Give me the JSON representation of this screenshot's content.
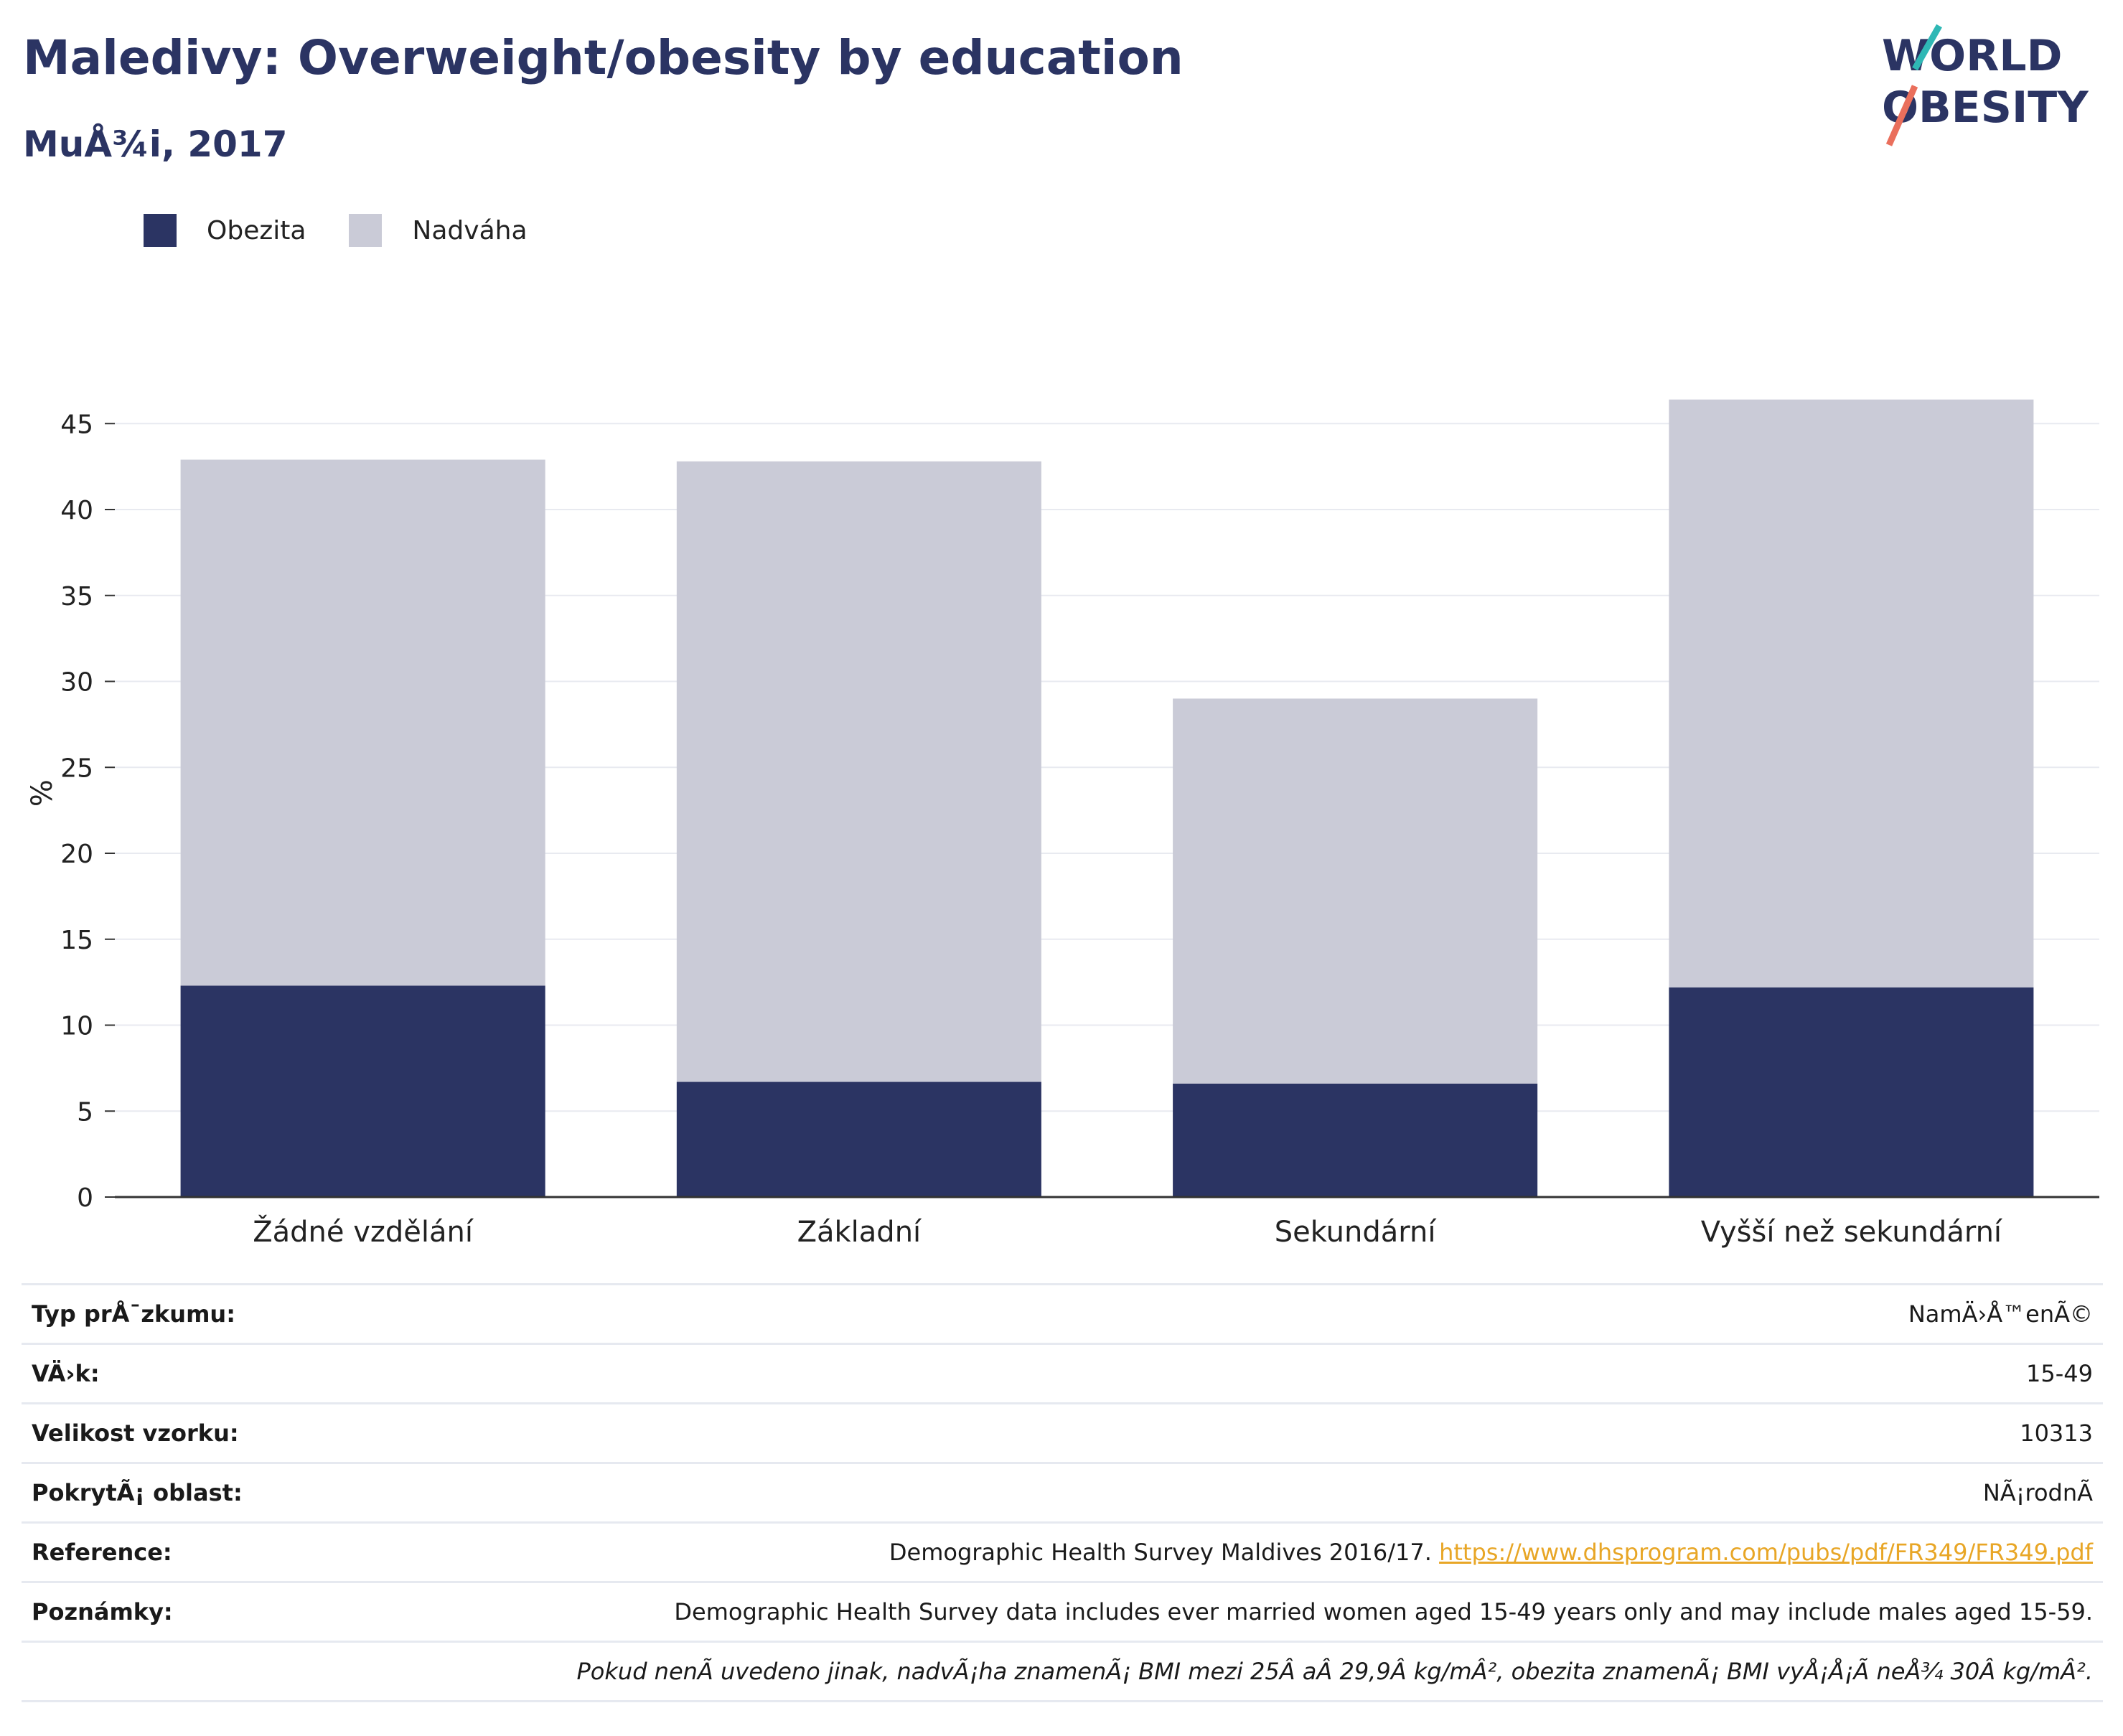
{
  "header": {
    "title": "Maledivy: Overweight/obesity by education",
    "subtitle": "MuÅ¾i, 2017"
  },
  "logo": {
    "line1": "WORLD",
    "line2": "OBESITY"
  },
  "colors": {
    "obesity": "#2b3463",
    "overweight": "#cacbd7",
    "title": "#2b3463",
    "link": "#e8a626",
    "logo_teal": "#2fb8b5",
    "logo_coral": "#ea6f5c"
  },
  "legend": [
    {
      "label": "Obezita",
      "color": "#2b3463"
    },
    {
      "label": "Nadváha",
      "color": "#cacbd7"
    }
  ],
  "chart_data": {
    "type": "bar",
    "stacked": true,
    "categories": [
      "Žádné vzdělání",
      "Základní",
      "Sekundární",
      "Vyšší než sekundární"
    ],
    "series": [
      {
        "name": "Obezita",
        "values": [
          12.3,
          6.7,
          6.6,
          12.2
        ]
      },
      {
        "name": "Nadváha",
        "values": [
          30.6,
          36.1,
          22.4,
          34.2
        ]
      }
    ],
    "ylabel": "%",
    "ylim": [
      0,
      47
    ],
    "yticks": [
      0,
      5,
      10,
      15,
      20,
      25,
      30,
      35,
      40,
      45
    ],
    "grid": true,
    "legend_position": "top-left"
  },
  "meta": [
    {
      "key": "Typ prÅ¯zkumu:",
      "value": "NamÄ›Å™enÃ©"
    },
    {
      "key": "VÄ›k:",
      "value": "15-49"
    },
    {
      "key": "Velikost vzorku:",
      "value": "10313"
    },
    {
      "key": "PokrytÃ¡ oblast:",
      "value": "NÃ¡rodnÃ"
    },
    {
      "key": "Reference:",
      "value": "Demographic Health Survey Maldives 2016/17.",
      "link": "https://www.dhsprogram.com/pubs/pdf/FR349/FR349.pdf"
    },
    {
      "key": "Poznámky:",
      "value": "Demographic Health Survey data includes ever married women aged 15-49 years only and may include males aged 15-59."
    }
  ],
  "footnote": "Pokud nenÃ uvedeno jinak, nadvÃ¡ha znamenÃ¡ BMI mezi 25Â aÂ 29,9Â kg/mÂ², obezita znamenÃ¡ BMI vyÅ¡Å¡Ã neÅ¾ 30Â kg/mÂ²."
}
